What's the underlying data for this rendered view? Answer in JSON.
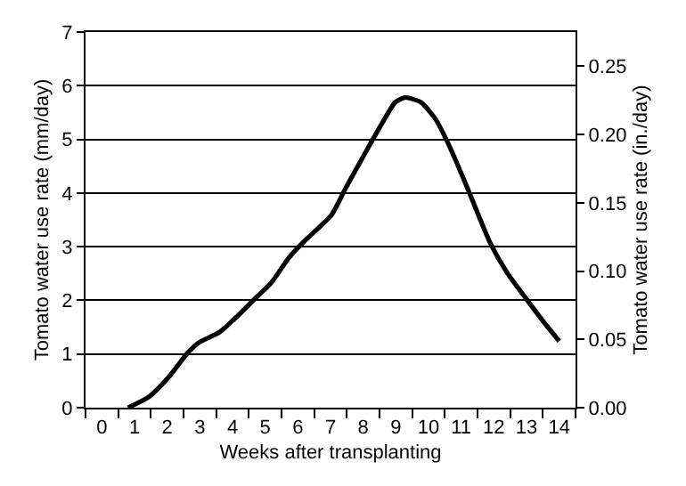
{
  "chart_data": {
    "type": "line",
    "xlabel": "Weeks after transplanting",
    "ylabel": "Tomato water use rate (mm/day)",
    "y2label": "Tomato water use rate (in./day)",
    "xlim": [
      -0.5,
      14.5
    ],
    "xticks": [
      0,
      1,
      2,
      3,
      4,
      5,
      6,
      7,
      8,
      9,
      10,
      11,
      12,
      13,
      14,
      {
        "value": -0.5,
        "label": null
      },
      {
        "value": 0.5,
        "label": null
      },
      {
        "value": 1.5,
        "label": null
      },
      {
        "value": 2.5,
        "label": null
      },
      {
        "value": 3.5,
        "label": null
      },
      {
        "value": 4.5,
        "label": null
      },
      {
        "value": 5.5,
        "label": null
      },
      {
        "value": 6.5,
        "label": null
      },
      {
        "value": 7.5,
        "label": null
      },
      {
        "value": 8.5,
        "label": null
      },
      {
        "value": 9.5,
        "label": null
      },
      {
        "value": 10.5,
        "label": null
      },
      {
        "value": 11.5,
        "label": null
      },
      {
        "value": 12.5,
        "label": null
      },
      {
        "value": 13.5,
        "label": null
      },
      {
        "value": 14.5,
        "label": null
      }
    ],
    "ylim": [
      0,
      7
    ],
    "yticks": [
      0,
      1,
      2,
      3,
      4,
      5,
      6,
      7
    ],
    "y2lim": [
      0,
      0.275
    ],
    "y2ticks": [
      {
        "value": 0,
        "label": "0.00"
      },
      {
        "value": 0.05,
        "label": "0.05"
      },
      {
        "value": 0.1,
        "label": "0.10"
      },
      {
        "value": 0.15,
        "label": "0.15"
      },
      {
        "value": 0.2,
        "label": "0.20"
      },
      {
        "value": 0.25,
        "label": "0.25"
      }
    ],
    "grid": "y",
    "line_style": "solid",
    "series": [
      {
        "color": "#000000",
        "x": [
          0.8,
          1.46,
          2.02,
          2.64,
          2.99,
          3.61,
          4.14,
          4.67,
          5.19,
          5.72,
          6.16,
          6.6,
          7.04,
          7.48,
          8.01,
          8.54,
          8.98,
          9.28,
          9.77,
          10.21,
          10.65,
          11.18,
          11.88,
          12.41,
          12.94,
          13.47,
          14.0
        ],
        "values": [
          0,
          0.21,
          0.55,
          1.03,
          1.22,
          1.41,
          1.7,
          2.02,
          2.33,
          2.79,
          3.08,
          3.33,
          3.6,
          4.11,
          4.69,
          5.26,
          5.69,
          5.78,
          5.69,
          5.38,
          4.86,
          4.11,
          3.08,
          2.51,
          2.07,
          1.64,
          1.24
        ]
      }
    ]
  }
}
